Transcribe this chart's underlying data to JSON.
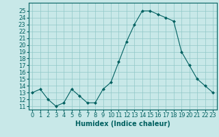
{
  "x": [
    0,
    1,
    2,
    3,
    4,
    5,
    6,
    7,
    8,
    9,
    10,
    11,
    12,
    13,
    14,
    15,
    16,
    17,
    18,
    19,
    20,
    21,
    22,
    23
  ],
  "y": [
    13,
    13.5,
    12,
    11,
    11.5,
    13.5,
    12.5,
    11.5,
    11.5,
    13.5,
    14.5,
    17.5,
    20.5,
    23,
    25,
    25,
    24.5,
    24,
    23.5,
    19,
    17,
    15,
    14,
    13
  ],
  "line_color": "#006060",
  "marker_color": "#006060",
  "bg_color": "#c8e8e8",
  "grid_color": "#90c8c8",
  "xlabel": "Humidex (Indice chaleur)",
  "xlabel_fontsize": 7,
  "xtick_labels": [
    "0",
    "1",
    "2",
    "3",
    "4",
    "5",
    "6",
    "7",
    "8",
    "9",
    "10",
    "11",
    "12",
    "13",
    "14",
    "15",
    "16",
    "17",
    "18",
    "19",
    "20",
    "21",
    "22",
    "23"
  ],
  "ytick_min": 11,
  "ytick_max": 25,
  "ylim": [
    10.5,
    26.2
  ],
  "xlim": [
    -0.5,
    23.5
  ],
  "tick_fontsize": 6
}
